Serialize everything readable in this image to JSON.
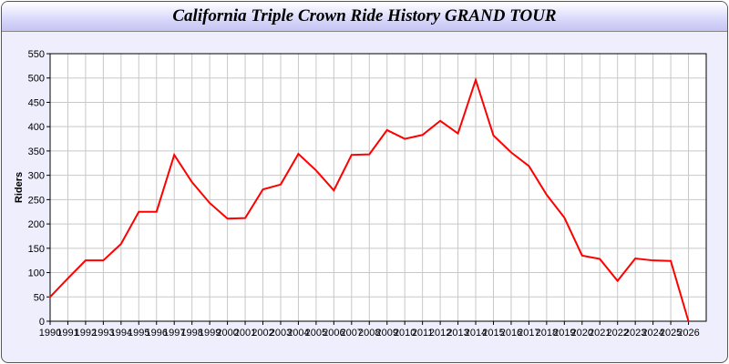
{
  "chart_data": {
    "type": "line",
    "title": "California Triple Crown Ride History GRAND TOUR",
    "xlabel": "",
    "ylabel": "Riders",
    "ylim": [
      0,
      550
    ],
    "yticks": [
      0,
      50,
      100,
      150,
      200,
      250,
      300,
      350,
      400,
      450,
      500,
      550
    ],
    "grid": true,
    "line_color": "#ff0000",
    "x": [
      1990,
      1991,
      1992,
      1993,
      1994,
      1995,
      1996,
      1997,
      1998,
      1999,
      2000,
      2001,
      2002,
      2003,
      2004,
      2005,
      2006,
      2007,
      2008,
      2009,
      2010,
      2011,
      2012,
      2013,
      2014,
      2015,
      2016,
      2017,
      2018,
      2019,
      2020,
      2021,
      2022,
      2023,
      2024,
      2025,
      2026
    ],
    "values": [
      50,
      88,
      125,
      125,
      159,
      225,
      225,
      342,
      286,
      243,
      211,
      212,
      271,
      281,
      344,
      310,
      269,
      342,
      343,
      393,
      375,
      383,
      412,
      386,
      496,
      382,
      347,
      319,
      260,
      213,
      135,
      128,
      83,
      129,
      125,
      124,
      0
    ]
  }
}
